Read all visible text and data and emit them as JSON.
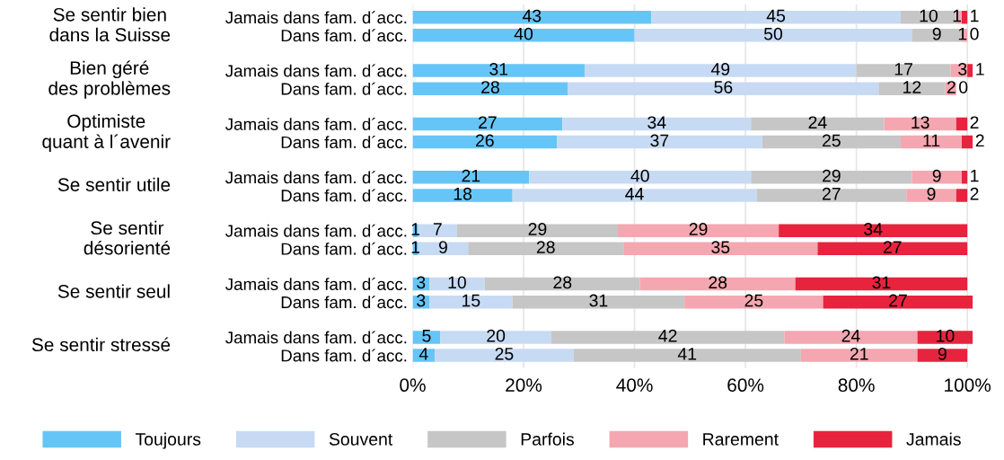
{
  "chart_data": {
    "type": "bar",
    "orientation": "horizontal",
    "stacked": true,
    "data_labels": true,
    "grid": "x",
    "legend": "bottom",
    "categories": [
      "Jamais dans fam. d´acc.",
      "Dans fam. d´acc.",
      "Jamais dans fam. d´acc.",
      "Dans fam. d´acc.",
      "Jamais dans fam. d´acc.",
      "Dans fam. d´acc.",
      "Jamais dans fam. d´acc.",
      "Dans fam. d´acc.",
      "Jamais dans fam. d´acc.",
      "Dans fam. d´acc.",
      "Jamais dans fam. d´acc.",
      "Dans fam. d´acc.",
      "Jamais dans fam. d´acc.",
      "Dans fam. d´acc."
    ],
    "annotations": [
      "Se sentir bien\ndans la Suisse",
      "Bien géré\ndes problèmes",
      "Optimiste\nquant à l´avenir",
      "Se sentir utile",
      "Se sentir\ndésorienté",
      "Se sentir seul",
      "Se sentir stressé"
    ],
    "series": [
      {
        "name": "Toujours",
        "color": "#66c5f7",
        "values": [
          43,
          40,
          31,
          28,
          27,
          26,
          21,
          18,
          1,
          1,
          3,
          3,
          5,
          4
        ]
      },
      {
        "name": "Souvent",
        "color": "#c7daf3",
        "values": [
          45,
          50,
          49,
          56,
          34,
          37,
          40,
          44,
          7,
          9,
          10,
          15,
          20,
          25
        ]
      },
      {
        "name": "Parfois",
        "color": "#c6c6c6",
        "values": [
          10,
          9,
          17,
          12,
          24,
          25,
          29,
          27,
          29,
          28,
          28,
          31,
          42,
          41
        ]
      },
      {
        "name": "Rarement",
        "color": "#f4a7b0",
        "values": [
          1,
          1,
          3,
          2,
          13,
          11,
          9,
          9,
          29,
          35,
          28,
          25,
          24,
          21
        ]
      },
      {
        "name": "Jamais",
        "color": "#e8233e",
        "values": [
          1,
          0,
          1,
          0,
          2,
          2,
          1,
          2,
          34,
          27,
          31,
          27,
          10,
          9
        ]
      }
    ],
    "xlim": [
      0,
      101
    ],
    "xticks": [
      {
        "value": 0,
        "label": "0%"
      },
      {
        "value": 20,
        "label": "20%"
      },
      {
        "value": 40,
        "label": "40%"
      },
      {
        "value": 60,
        "label": "60%"
      },
      {
        "value": 80,
        "label": "80%"
      },
      {
        "value": 100,
        "label": "100%"
      }
    ]
  }
}
